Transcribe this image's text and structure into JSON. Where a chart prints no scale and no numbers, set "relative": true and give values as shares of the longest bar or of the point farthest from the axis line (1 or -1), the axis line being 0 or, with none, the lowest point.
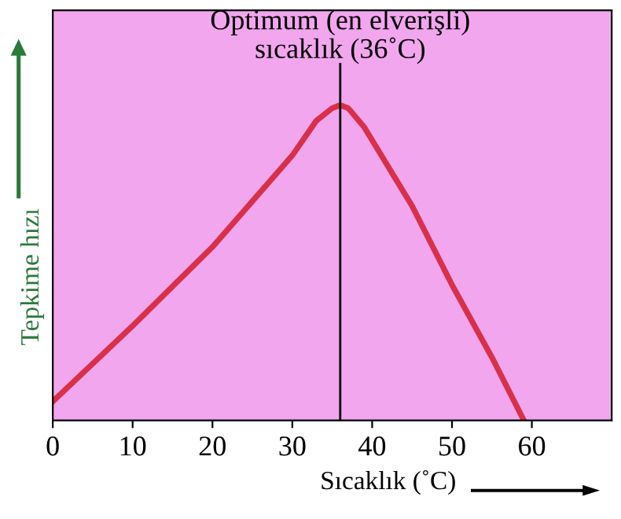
{
  "chart_data": {
    "type": "line",
    "xlabel": "Sıcaklık (˚C)",
    "ylabel": "Tepkime hızı",
    "relative": true,
    "x": [
      0,
      10,
      20,
      30,
      33,
      35,
      36,
      37,
      39,
      45,
      50,
      55,
      59
    ],
    "series": [
      {
        "color": "#d9304a",
        "values": [
          0.06,
          0.3,
          0.55,
          0.84,
          0.95,
          0.99,
          1,
          0.99,
          0.93,
          0.68,
          0.43,
          0.2,
          0
        ]
      }
    ],
    "xlim": [
      0,
      70
    ],
    "xticks": [
      0,
      10,
      20,
      30,
      40,
      50,
      60
    ],
    "tick_labels": "x",
    "grid": false,
    "ref_lines": [
      {
        "axis": "x",
        "value": 36,
        "color": "#000000"
      }
    ],
    "annotations": [
      {
        "text": "Optimum (en elverişli)\nsıcaklık (36˚C)",
        "x": 36,
        "y": 1
      }
    ]
  }
}
